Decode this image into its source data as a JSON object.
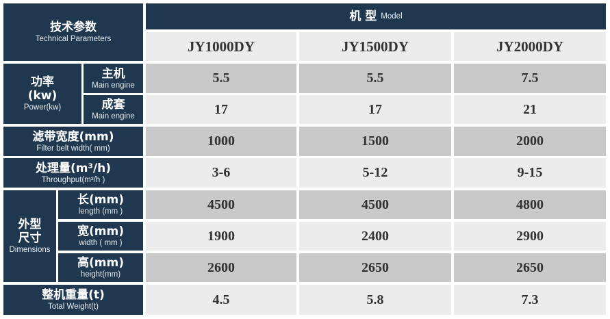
{
  "header": {
    "param_zh": "技术参数",
    "param_en": "Technical Parameters",
    "model_zh": "机 型",
    "model_en": "Model"
  },
  "models": [
    "JY1000DY",
    "JY1500DY",
    "JY2000DY"
  ],
  "rows": {
    "power": {
      "zh": "功率",
      "unit": "(kw)",
      "en": "Power(kw)",
      "main": {
        "zh": "主机",
        "en": "Main engine",
        "values": [
          "5.5",
          "5.5",
          "7.5"
        ]
      },
      "set": {
        "zh": "成套",
        "en": "Main engine",
        "values": [
          "17",
          "17",
          "21"
        ]
      }
    },
    "belt": {
      "zh": "滤带宽度(mm)",
      "en": "Filter belt width( mm)",
      "values": [
        "1000",
        "1500",
        "2000"
      ]
    },
    "throughput": {
      "zh": "处理量(m³/h)",
      "en": "Throughput(m³/h )",
      "values": [
        "3-6",
        "5-12",
        "9-15"
      ]
    },
    "dimensions": {
      "zh1": "外型",
      "zh2": "尺寸",
      "en": "Dimensions",
      "length": {
        "zh": "长(mm)",
        "en": "length (mm )",
        "values": [
          "4500",
          "4500",
          "4800"
        ]
      },
      "width": {
        "zh": "宽(mm)",
        "en": "width ( mm )",
        "values": [
          "1900",
          "2400",
          "2900"
        ]
      },
      "height": {
        "zh": "高(mm)",
        "en": "height(mm)",
        "values": [
          "2600",
          "2650",
          "2650"
        ]
      }
    },
    "weight": {
      "zh": "整机重量(t)",
      "en": "Total Weight(t)",
      "values": [
        "4.5",
        "5.8",
        "7.3"
      ]
    }
  },
  "colors": {
    "navy": "#1f3850",
    "gray_row": "#c9c9c9",
    "light_row": "#ececec"
  }
}
